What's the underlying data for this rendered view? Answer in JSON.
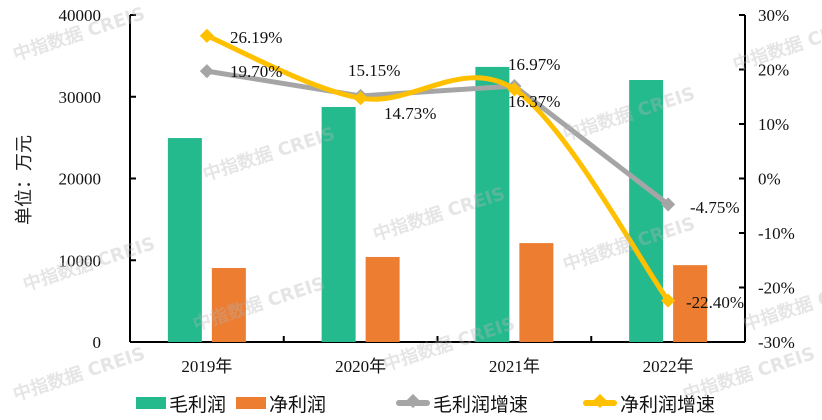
{
  "chart_data": {
    "type": "bar",
    "title": "",
    "ylabel": "单位：万元",
    "ylabel_right": "",
    "xlabel": "",
    "categories": [
      "2019年",
      "2020年",
      "2021年",
      "2022年"
    ],
    "series": [
      {
        "name": "毛利润",
        "type": "bar",
        "axis": "left",
        "color": "#25BA8E",
        "values": [
          24950,
          28750,
          33650,
          32050
        ]
      },
      {
        "name": "净利润",
        "type": "bar",
        "axis": "left",
        "color": "#ED7D31",
        "values": [
          9050,
          10400,
          12100,
          9400
        ]
      },
      {
        "name": "毛利润增速",
        "type": "line",
        "axis": "right",
        "color": "#A5A5A5",
        "values": [
          19.7,
          15.15,
          16.97,
          -4.75
        ],
        "labels": [
          "19.70%",
          "15.15%",
          "16.97%",
          "-4.75%"
        ]
      },
      {
        "name": "净利润增速",
        "type": "line",
        "smooth": true,
        "axis": "right",
        "color": "#FFC000",
        "values": [
          26.19,
          14.73,
          16.37,
          -22.4
        ],
        "labels": [
          "26.19%",
          "14.73%",
          "16.37%",
          "-22.40%"
        ]
      }
    ],
    "ylim": [
      0,
      40000
    ],
    "yticks": [
      "0",
      "10000",
      "20000",
      "30000",
      "40000"
    ],
    "ylim_right": [
      -30,
      30
    ],
    "yticks_right": [
      "-30%",
      "-20%",
      "-10%",
      "0%",
      "10%",
      "20%",
      "30%"
    ],
    "grid": false,
    "legend_position": "bottom"
  },
  "watermark": "中指数据 CREIS"
}
